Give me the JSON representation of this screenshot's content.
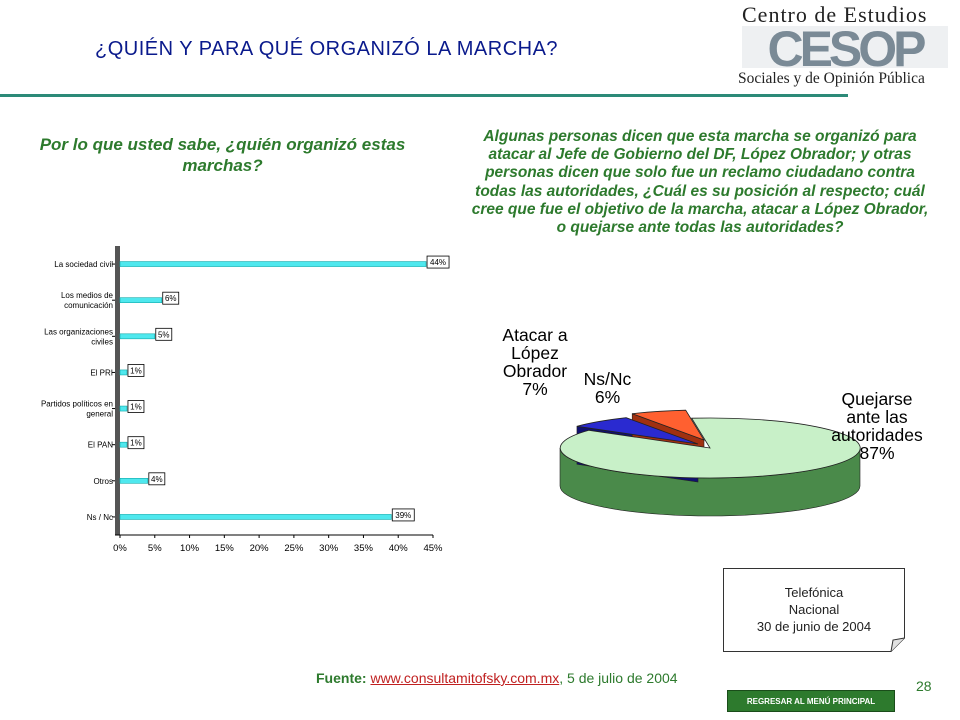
{
  "header": {
    "title": "¿QUIÉN Y PARA QUÉ ORGANIZÓ LA MARCHA?",
    "logo": {
      "line1": "Centro de Estudios",
      "mark": "CESOP",
      "line2": "Sociales y de Opinión Pública",
      "colors": {
        "mark": "#7a8a96",
        "text": "#222222"
      }
    }
  },
  "question_left": "Por lo que usted sabe, ¿quién organizó estas marchas?",
  "question_right": "Algunas personas dicen que esta marcha se organizó para atacar al Jefe de Gobierno del DF, López Obrador; y otras personas dicen que solo fue un reclamo ciudadano contra todas las autoridades, ¿Cuál es su posición al respecto; cuál cree que fue el objetivo de la marcha, atacar a López Obrador, o quejarse ante todas las autoridades?",
  "note": {
    "line1": "Telefónica",
    "line2": "Nacional",
    "line3": "30 de junio de 2004"
  },
  "source": {
    "label": "Fuente:",
    "link": "www.consultamitofsky.com.mx",
    "date": ", 5 de julio de 2004"
  },
  "page_number": "28",
  "menu_button": "REGRESAR AL MENÚ PRINCIPAL",
  "colors": {
    "title": "#0a1a8c",
    "question": "#2d7a2d",
    "rule": "#2c8a78",
    "bar_fill": "#4fe8ee",
    "pie_quejarse": "#c8f0c8",
    "pie_atacar": "#2a2ad0",
    "pie_nsnc": "#ff6030"
  },
  "chart_data": [
    {
      "type": "bar",
      "orientation": "horizontal",
      "categories": [
        [
          "La sociedad civil"
        ],
        [
          "Los medios de",
          "comunicación"
        ],
        [
          "Las organizaciones",
          "civiles"
        ],
        [
          "El PRI"
        ],
        [
          "Partidos políticos en",
          "general"
        ],
        [
          "El PAN"
        ],
        [
          "Otros"
        ],
        [
          "Ns / Nc"
        ]
      ],
      "values": [
        44,
        6,
        5,
        1,
        1,
        1,
        4,
        39
      ],
      "data_labels": [
        "44%",
        "6%",
        "5%",
        "1%",
        "1%",
        "1%",
        "4%",
        "39%"
      ],
      "xlim": [
        0,
        45
      ],
      "xticks": [
        "0%",
        "5%",
        "10%",
        "15%",
        "20%",
        "25%",
        "30%",
        "35%",
        "40%",
        "45%"
      ],
      "grid": false,
      "legend": "none"
    },
    {
      "type": "pie",
      "style": "3d",
      "slices": [
        {
          "label": [
            "Quejarse",
            "ante las",
            "autoridades"
          ],
          "value": 87,
          "value_label": "87%"
        },
        {
          "label": [
            "Atacar a",
            "López",
            "Obrador"
          ],
          "value": 7,
          "value_label": "7%"
        },
        {
          "label": [
            "Ns/Nc"
          ],
          "value": 6,
          "value_label": "6%"
        }
      ],
      "legend": "none"
    }
  ]
}
